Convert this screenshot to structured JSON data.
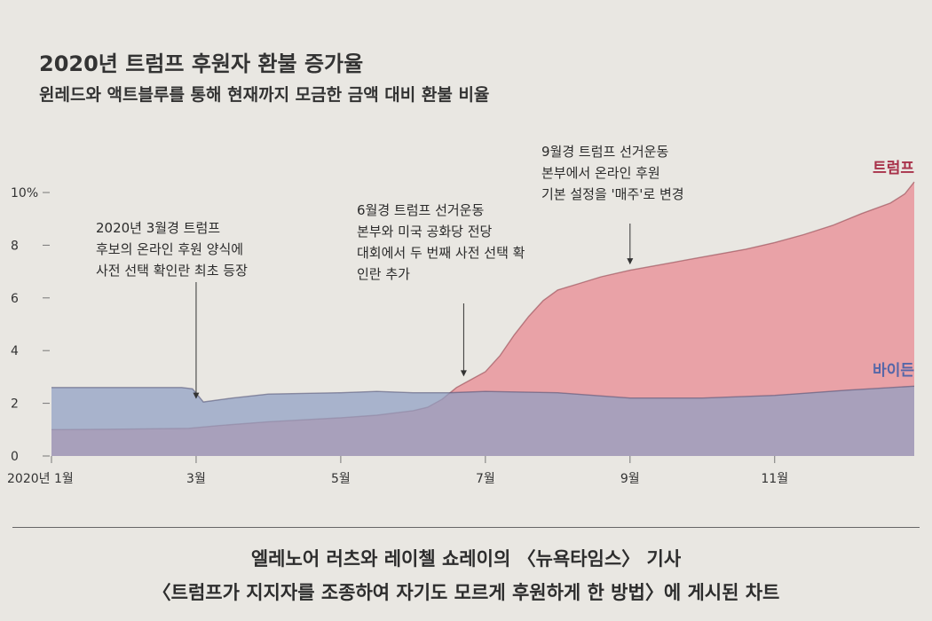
{
  "chart_data": {
    "type": "area",
    "title": "2020년 트럼프 후원자 환불 증가율",
    "subtitle": "윈레드와 액트블루를 통해 현재까지 모금한 금액 대비 환불 비율",
    "ylim": [
      0,
      10
    ],
    "yticks": [
      {
        "value": 0,
        "label": "0"
      },
      {
        "value": 2,
        "label": "2"
      },
      {
        "value": 4,
        "label": "4"
      },
      {
        "value": 6,
        "label": "6"
      },
      {
        "value": 8,
        "label": "8"
      },
      {
        "value": 10,
        "label": "10%"
      }
    ],
    "xlim": [
      1,
      12.93
    ],
    "xticks": [
      {
        "value": 1,
        "label": "2020년 1월"
      },
      {
        "value": 3,
        "label": "3월"
      },
      {
        "value": 5,
        "label": "5월"
      },
      {
        "value": 7,
        "label": "7월"
      },
      {
        "value": 9,
        "label": "9월"
      },
      {
        "value": 11,
        "label": "11월"
      }
    ],
    "series": [
      {
        "name": "트럼프",
        "color": "#e9a2a7",
        "x": [
          1,
          2,
          2.9,
          3.3,
          4,
          5,
          5.5,
          6,
          6.2,
          6.4,
          6.6,
          6.8,
          7,
          7.2,
          7.4,
          7.6,
          7.8,
          8,
          8.3,
          8.6,
          9,
          9.4,
          9.8,
          10.2,
          10.6,
          11,
          11.4,
          11.8,
          12.2,
          12.6,
          12.8,
          12.93
        ],
        "values": [
          1.0,
          1.02,
          1.05,
          1.15,
          1.3,
          1.45,
          1.55,
          1.72,
          1.85,
          2.15,
          2.6,
          2.9,
          3.2,
          3.8,
          4.6,
          5.3,
          5.9,
          6.3,
          6.55,
          6.8,
          7.05,
          7.25,
          7.45,
          7.65,
          7.85,
          8.1,
          8.4,
          8.75,
          9.2,
          9.6,
          9.95,
          10.4
        ]
      },
      {
        "name": "바이든",
        "color": "#8f9fc4",
        "x": [
          1,
          2.8,
          2.95,
          3.1,
          3.5,
          4,
          5,
          5.5,
          6,
          6.5,
          7,
          8,
          9,
          10,
          11,
          12,
          12.93
        ],
        "values": [
          2.6,
          2.6,
          2.55,
          2.05,
          2.2,
          2.35,
          2.4,
          2.45,
          2.4,
          2.4,
          2.45,
          2.4,
          2.2,
          2.2,
          2.3,
          2.5,
          2.65
        ]
      }
    ],
    "annotations": [
      {
        "x": 3,
        "arrow_to": 2.0,
        "lines": [
          "2020년 3월경 트럼프",
          "후보의 온라인 후원 양식에",
          "사전 선택 확인란 최초 등장"
        ]
      },
      {
        "x": 6.7,
        "arrow_to": 2.85,
        "lines": [
          "6월경 트럼프 선거운동",
          "본부와 미국 공화당 전당",
          "대회에서 두 번째 사전 선택 확",
          "인란 추가"
        ]
      },
      {
        "x": 9,
        "arrow_to": 7.1,
        "lines": [
          "9월경 트럼프 선거운동",
          "본부에서 온라인 후원",
          "기본 설정을 '매주'로 변경"
        ]
      }
    ],
    "legend": "inline-right"
  },
  "caption": {
    "line1": "엘레노어 러츠와 레이첼 쇼레이의 〈뉴욕타임스〉 기사",
    "line2": "〈트럼프가 지지자를 조종하여 자기도 모르게 후원하게 한 방법〉에 게시된 차트"
  }
}
